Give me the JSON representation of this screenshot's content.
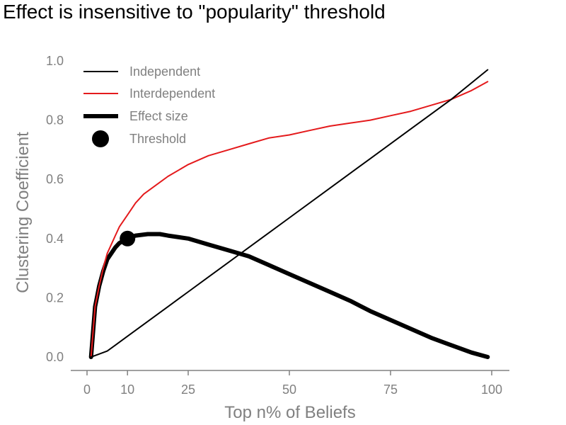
{
  "chart_data": {
    "type": "line",
    "title": "Effect is insensitive to \"popularity\" threshold",
    "xlabel": "Top n% of Beliefs",
    "ylabel": "Clustering Coefficient",
    "xlim": [
      -4,
      104
    ],
    "ylim": [
      -0.05,
      1.05
    ],
    "xticks": [
      0,
      10,
      25,
      50,
      75,
      100
    ],
    "xtick_labels": [
      "0",
      "10",
      "25",
      "50",
      "75",
      "100"
    ],
    "yticks": [
      0.0,
      0.2,
      0.4,
      0.6,
      0.8,
      1.0
    ],
    "ytick_labels": [
      "0.0",
      "0.2",
      "0.4",
      "0.6",
      "0.8",
      "1.0"
    ],
    "grid": false,
    "legend_position": "upper-left",
    "series": [
      {
        "name": "Independent",
        "color": "#000000",
        "style": "thin",
        "x": [
          1,
          3,
          5,
          7,
          10,
          15,
          20,
          25,
          30,
          40,
          50,
          60,
          70,
          80,
          90,
          99
        ],
        "y": [
          0.0,
          0.01,
          0.02,
          0.04,
          0.07,
          0.12,
          0.17,
          0.22,
          0.27,
          0.37,
          0.47,
          0.57,
          0.67,
          0.77,
          0.87,
          0.97
        ]
      },
      {
        "name": "Interdependent",
        "color": "#e41a1c",
        "style": "medium",
        "x": [
          1,
          2,
          3,
          4,
          5,
          6,
          7,
          8,
          10,
          12,
          14,
          17,
          20,
          25,
          30,
          35,
          40,
          45,
          50,
          55,
          60,
          65,
          70,
          75,
          80,
          85,
          90,
          95,
          99
        ],
        "y": [
          0.0,
          0.17,
          0.24,
          0.3,
          0.35,
          0.38,
          0.41,
          0.44,
          0.48,
          0.52,
          0.55,
          0.58,
          0.61,
          0.65,
          0.68,
          0.7,
          0.72,
          0.74,
          0.75,
          0.765,
          0.78,
          0.79,
          0.8,
          0.815,
          0.83,
          0.85,
          0.87,
          0.9,
          0.93
        ]
      },
      {
        "name": "Effect size",
        "color": "#000000",
        "style": "thick",
        "x": [
          1,
          2,
          3,
          4,
          5,
          6,
          7,
          8,
          10,
          12,
          15,
          18,
          20,
          25,
          30,
          35,
          40,
          45,
          50,
          55,
          60,
          65,
          70,
          75,
          80,
          85,
          90,
          95,
          99
        ],
        "y": [
          0.0,
          0.17,
          0.24,
          0.29,
          0.33,
          0.35,
          0.37,
          0.385,
          0.4,
          0.41,
          0.415,
          0.415,
          0.41,
          0.4,
          0.38,
          0.36,
          0.34,
          0.31,
          0.28,
          0.25,
          0.22,
          0.19,
          0.155,
          0.125,
          0.095,
          0.065,
          0.04,
          0.015,
          0.0
        ]
      }
    ],
    "markers": [
      {
        "name": "Threshold",
        "color": "#000000",
        "x": 10,
        "y": 0.4
      }
    ],
    "legend": [
      "Independent",
      "Interdependent",
      "Effect size",
      "Threshold"
    ]
  }
}
